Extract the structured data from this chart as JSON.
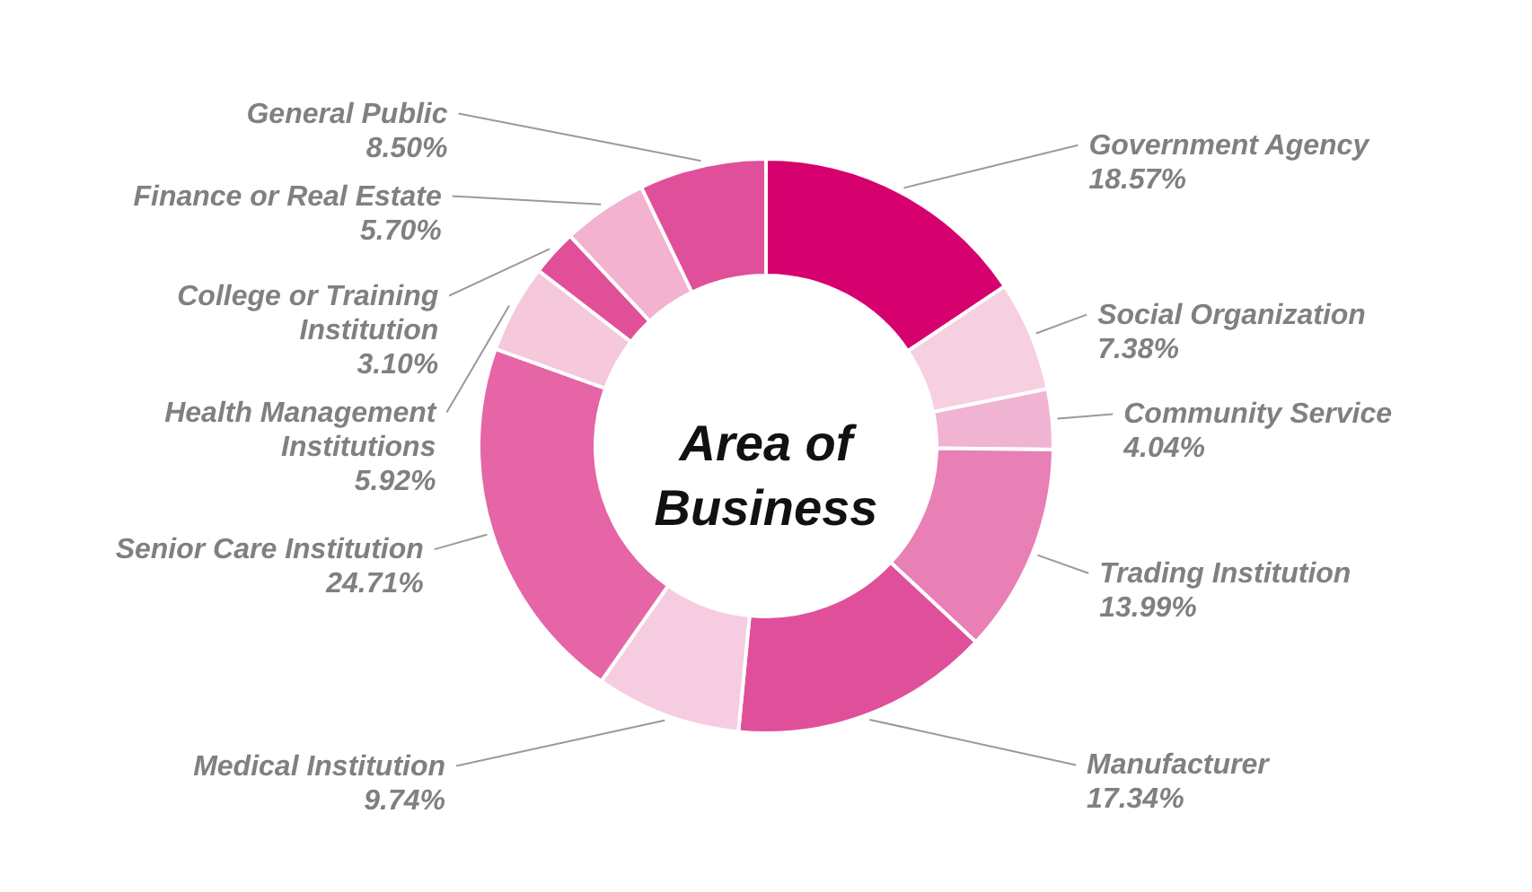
{
  "chart_data": {
    "type": "donut",
    "title": "Area of Business",
    "categories": [
      "Government Agency",
      "Social Organization",
      "Community Service",
      "Trading Institution",
      "Manufacturer",
      "Medical Institution",
      "Senior Care Institution",
      "Health Management Institutions",
      "College or Training Institution",
      "Finance or Real Estate",
      "General Public"
    ],
    "values": [
      18.57,
      7.38,
      4.04,
      13.99,
      17.34,
      9.74,
      24.71,
      5.92,
      3.1,
      5.7,
      8.5
    ],
    "value_labels": [
      "18.57%",
      "7.38%",
      "4.04%",
      "13.99%",
      "17.34%",
      "9.74%",
      "24.71%",
      "5.92%",
      "3.10%",
      "5.70%",
      "8.50%"
    ],
    "colors": [
      "#d6006e",
      "#f6d0e0",
      "#f0b4d2",
      "#e87fb5",
      "#e0509a",
      "#f6cde0",
      "#e565a6",
      "#f5c8dc",
      "#e24f99",
      "#f2b2d0",
      "#e0509a"
    ]
  }
}
